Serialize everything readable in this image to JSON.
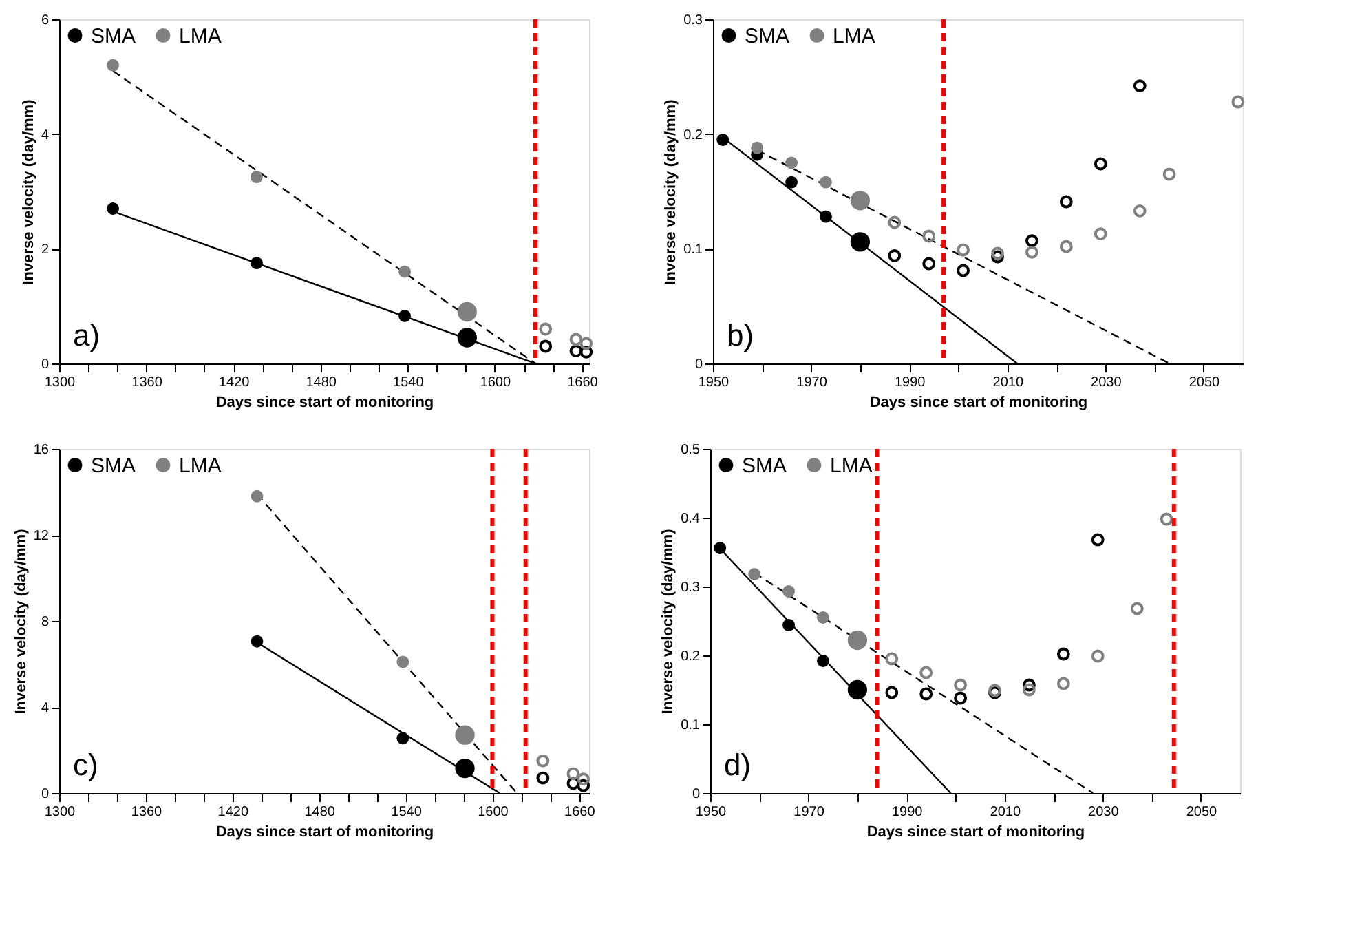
{
  "chart_data": [
    {
      "type": "scatter",
      "xlabel": "Days since start of monitoring",
      "ylabel": "Inverse velocity (day/mm)",
      "annotations": [
        "a)"
      ],
      "legend": "top left",
      "grid": false,
      "xlim": [
        1300,
        1665
      ],
      "ylim": [
        0,
        6
      ],
      "xticks": [
        1300,
        {
          "value": 1320,
          "label": null
        },
        {
          "value": 1340,
          "label": null
        },
        1360,
        {
          "value": 1380,
          "label": null
        },
        {
          "value": 1400,
          "label": null
        },
        1420,
        {
          "value": 1440,
          "label": null
        },
        {
          "value": 1460,
          "label": null
        },
        1480,
        {
          "value": 1500,
          "label": null
        },
        {
          "value": 1520,
          "label": null
        },
        1540,
        {
          "value": 1560,
          "label": null
        },
        {
          "value": 1580,
          "label": null
        },
        1600,
        {
          "value": 1620,
          "label": null
        },
        {
          "value": 1640,
          "label": null
        },
        1660
      ],
      "yticks": [
        0,
        2,
        4,
        6
      ],
      "series": [
        {
          "type": "line",
          "color": "#000000",
          "line_style": "solid",
          "x": [
            1337,
            1628
          ],
          "values": [
            2.65,
            0
          ]
        },
        {
          "type": "line",
          "color": "#000000",
          "line_style": "dashed",
          "x": [
            1337,
            1628
          ],
          "values": [
            5.1,
            0
          ]
        },
        {
          "name": "SMA",
          "color": "#000000",
          "marker": "circle",
          "x": [
            1337,
            1436,
            1538,
            1581
          ],
          "values": [
            2.7,
            1.75,
            0.83,
            0.45
          ],
          "sizes": [
            0.4,
            0.4,
            0.4,
            1
          ]
        },
        {
          "name": "LMA",
          "color": "#808080",
          "marker": "circle",
          "x": [
            1337,
            1436,
            1538,
            1581
          ],
          "values": [
            5.2,
            3.25,
            1.6,
            0.9
          ],
          "sizes": [
            0.4,
            0.4,
            0.4,
            1
          ]
        },
        {
          "color": "#000000",
          "marker": "circle",
          "x": [
            1635,
            1656,
            1663
          ],
          "values": [
            0.3,
            0.22,
            0.2
          ]
        },
        {
          "color": "#808080",
          "marker": "circle",
          "x": [
            1635,
            1656,
            1663
          ],
          "values": [
            0.6,
            0.42,
            0.35
          ]
        }
      ],
      "ref_lines": [
        {
          "axis": "x",
          "value": 1628,
          "color": "#ff0000",
          "line_style": "dashed"
        }
      ]
    },
    {
      "type": "scatter",
      "xlabel": "Days since start of monitoring",
      "ylabel": "Inverse velocity (day/mm)",
      "annotations": [
        "b)"
      ],
      "legend": "top left",
      "grid": false,
      "xlim": [
        1950,
        2058
      ],
      "ylim": [
        0,
        0.3
      ],
      "xticks": [
        1950,
        {
          "value": 1960,
          "label": null
        },
        1970,
        {
          "value": 1980,
          "label": null
        },
        1990,
        {
          "value": 2000,
          "label": null
        },
        2010,
        {
          "value": 2020,
          "label": null
        },
        2030,
        {
          "value": 2040,
          "label": null
        },
        2050
      ],
      "yticks": [
        0,
        0.1,
        0.2,
        0.3
      ],
      "series": [
        {
          "type": "line",
          "color": "#000000",
          "line_style": "solid",
          "x": [
            1952,
            2012
          ],
          "values": [
            0.197,
            0
          ]
        },
        {
          "type": "line",
          "color": "#000000",
          "line_style": "dashed",
          "x": [
            1959,
            2043
          ],
          "values": [
            0.186,
            0
          ]
        },
        {
          "name": "SMA",
          "color": "#000000",
          "marker": "circle",
          "x": [
            1952,
            1959,
            1966,
            1973,
            1980
          ],
          "values": [
            0.195,
            0.182,
            0.158,
            0.128,
            0.106
          ],
          "sizes": [
            0.4,
            0.4,
            0.4,
            0.4,
            1
          ]
        },
        {
          "name": "LMA",
          "color": "#808080",
          "marker": "circle",
          "x": [
            1959,
            1966,
            1973,
            1980
          ],
          "values": [
            0.188,
            0.175,
            0.158,
            0.142
          ],
          "sizes": [
            0.4,
            0.4,
            0.4,
            1
          ]
        },
        {
          "color": "#000000",
          "marker": "circle",
          "x": [
            1987,
            1994,
            2001,
            2008,
            2015,
            2022,
            2029,
            2037
          ],
          "values": [
            0.094,
            0.087,
            0.081,
            0.093,
            0.107,
            0.141,
            0.174,
            0.242
          ]
        },
        {
          "color": "#808080",
          "marker": "circle",
          "x": [
            1987,
            1994,
            2001,
            2008,
            2015,
            2022,
            2029,
            2037,
            2043,
            2057
          ],
          "values": [
            0.123,
            0.111,
            0.099,
            0.096,
            0.097,
            0.102,
            0.113,
            0.133,
            0.165,
            0.228
          ]
        }
      ],
      "ref_lines": [
        {
          "axis": "x",
          "value": 1997,
          "color": "#ff0000",
          "line_style": "dashed"
        }
      ]
    },
    {
      "type": "scatter",
      "xlabel": "Days since start of monitoring",
      "ylabel": "Inverse velocity (day/mm)",
      "annotations": [
        "c)"
      ],
      "legend": "top left",
      "grid": false,
      "xlim": [
        1300,
        1667
      ],
      "ylim": [
        0,
        16
      ],
      "xticks": [
        1300,
        {
          "value": 1320,
          "label": null
        },
        {
          "value": 1340,
          "label": null
        },
        1360,
        {
          "value": 1380,
          "label": null
        },
        {
          "value": 1400,
          "label": null
        },
        1420,
        {
          "value": 1440,
          "label": null
        },
        {
          "value": 1460,
          "label": null
        },
        1480,
        {
          "value": 1500,
          "label": null
        },
        {
          "value": 1520,
          "label": null
        },
        1540,
        {
          "value": 1560,
          "label": null
        },
        {
          "value": 1580,
          "label": null
        },
        1600,
        {
          "value": 1620,
          "label": null
        },
        {
          "value": 1640,
          "label": null
        },
        1660
      ],
      "yticks": [
        0,
        4,
        8,
        12,
        16
      ],
      "series": [
        {
          "type": "line",
          "color": "#000000",
          "line_style": "solid",
          "x": [
            1437,
            1605
          ],
          "values": [
            7.0,
            0
          ]
        },
        {
          "type": "line",
          "color": "#000000",
          "line_style": "dashed",
          "x": [
            1437,
            1617
          ],
          "values": [
            13.9,
            0
          ]
        },
        {
          "name": "SMA",
          "color": "#000000",
          "marker": "circle",
          "x": [
            1437,
            1538,
            1581
          ],
          "values": [
            7.05,
            2.55,
            1.15
          ],
          "sizes": [
            0.4,
            0.4,
            1
          ]
        },
        {
          "name": "LMA",
          "color": "#808080",
          "marker": "circle",
          "x": [
            1437,
            1538,
            1581
          ],
          "values": [
            13.8,
            6.1,
            2.7
          ],
          "sizes": [
            0.4,
            0.4,
            1
          ]
        },
        {
          "color": "#000000",
          "marker": "circle",
          "x": [
            1635,
            1656,
            1663
          ],
          "values": [
            0.7,
            0.45,
            0.35
          ]
        },
        {
          "color": "#808080",
          "marker": "circle",
          "x": [
            1635,
            1656,
            1663
          ],
          "values": [
            1.5,
            0.9,
            0.65
          ]
        }
      ],
      "ref_lines": [
        {
          "axis": "x",
          "value": 1600,
          "color": "#ff0000",
          "line_style": "dashed"
        },
        {
          "axis": "x",
          "value": 1623,
          "color": "#ff0000",
          "line_style": "dashed"
        }
      ]
    },
    {
      "type": "scatter",
      "xlabel": "Days since start of monitoring",
      "ylabel": "Inverse velocity (day/mm)",
      "annotations": [
        "d)"
      ],
      "legend": "top left",
      "grid": false,
      "xlim": [
        1950,
        2058
      ],
      "ylim": [
        0,
        0.5
      ],
      "xticks": [
        1950,
        {
          "value": 1960,
          "label": null
        },
        1970,
        {
          "value": 1980,
          "label": null
        },
        1990,
        {
          "value": 2000,
          "label": null
        },
        2010,
        {
          "value": 2020,
          "label": null
        },
        2030,
        {
          "value": 2040,
          "label": null
        },
        2050
      ],
      "yticks": [
        0,
        0.1,
        0.2,
        0.3,
        0.4,
        0.5
      ],
      "series": [
        {
          "type": "line",
          "color": "#000000",
          "line_style": "solid",
          "x": [
            1952,
            1999
          ],
          "values": [
            0.355,
            0
          ]
        },
        {
          "type": "line",
          "color": "#000000",
          "line_style": "dashed",
          "x": [
            1959,
            2028
          ],
          "values": [
            0.32,
            0
          ]
        },
        {
          "name": "SMA",
          "color": "#000000",
          "marker": "circle",
          "x": [
            1952,
            1966,
            1973,
            1980
          ],
          "values": [
            0.356,
            0.244,
            0.192,
            0.15
          ],
          "sizes": [
            0.4,
            0.4,
            0.4,
            1
          ]
        },
        {
          "name": "LMA",
          "color": "#808080",
          "marker": "circle",
          "x": [
            1959,
            1966,
            1973,
            1980
          ],
          "values": [
            0.318,
            0.293,
            0.255,
            0.222
          ],
          "sizes": [
            0.4,
            0.4,
            0.4,
            1
          ]
        },
        {
          "color": "#000000",
          "marker": "circle",
          "x": [
            1987,
            1994,
            2001,
            2008,
            2015,
            2022,
            2029
          ],
          "values": [
            0.146,
            0.144,
            0.138,
            0.146,
            0.157,
            0.202,
            0.368
          ]
        },
        {
          "color": "#808080",
          "marker": "circle",
          "x": [
            1987,
            1994,
            2001,
            2008,
            2015,
            2022,
            2029,
            2037,
            2043
          ],
          "values": [
            0.195,
            0.175,
            0.157,
            0.149,
            0.15,
            0.159,
            0.199,
            0.268,
            0.398
          ]
        }
      ],
      "ref_lines": [
        {
          "axis": "x",
          "value": 1984,
          "color": "#ff0000",
          "line_style": "dashed"
        },
        {
          "axis": "x",
          "value": 2044.5,
          "color": "#ff0000",
          "line_style": "dashed"
        }
      ]
    }
  ]
}
